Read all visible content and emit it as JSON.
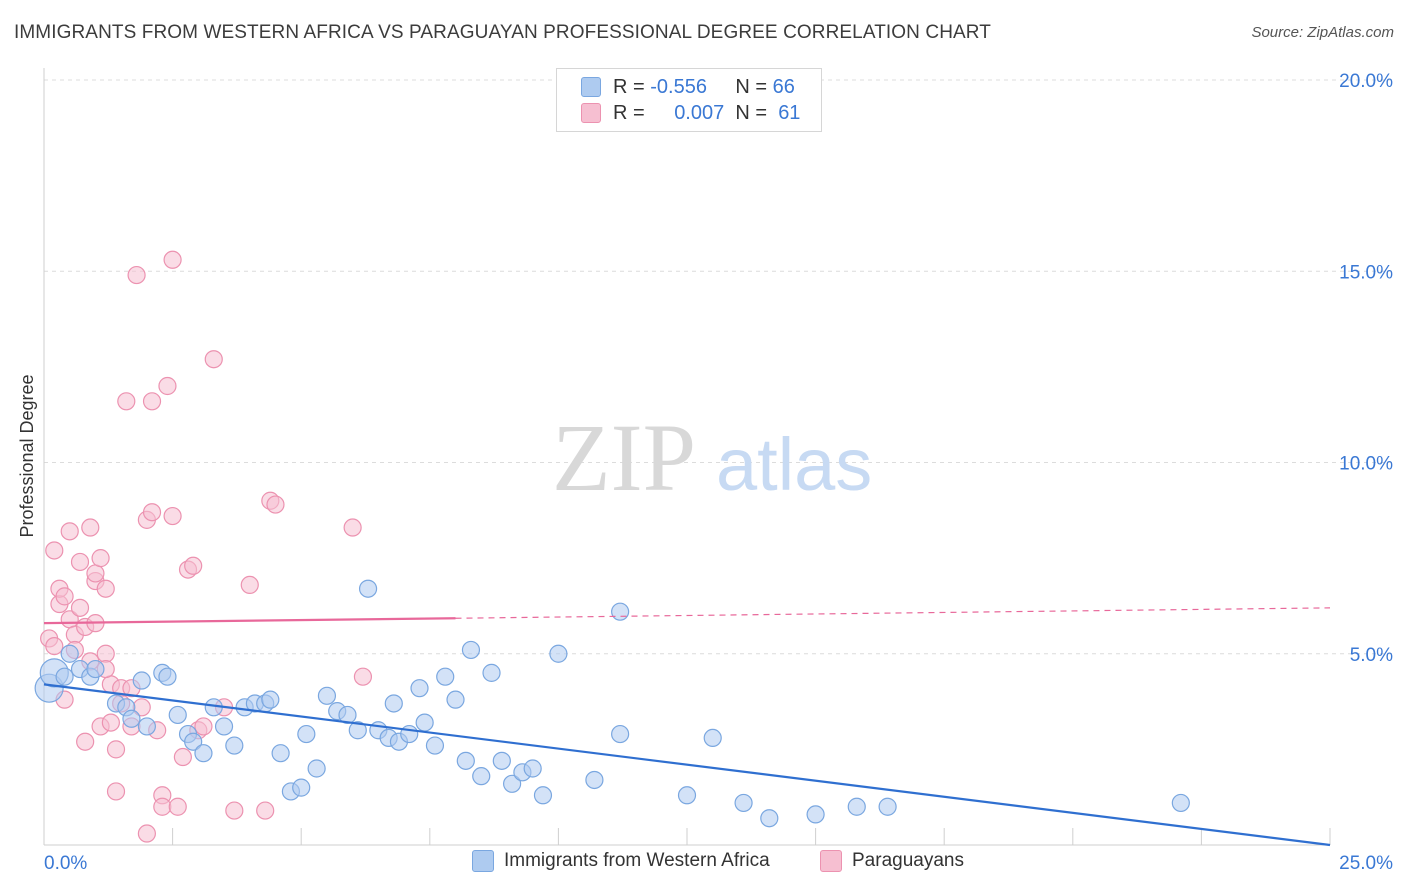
{
  "title": "IMMIGRANTS FROM WESTERN AFRICA VS PARAGUAYAN PROFESSIONAL DEGREE CORRELATION CHART",
  "source": "Source: ZipAtlas.com",
  "watermark": {
    "zip": "ZIP",
    "atlas": "atlas"
  },
  "colors": {
    "blue_fill": "#aecbf0",
    "blue_stroke": "#7aa7e0",
    "blue_line": "#2f6fd0",
    "pink_fill": "#f6bfd1",
    "pink_stroke": "#ec92b0",
    "pink_line": "#e8689a",
    "tick_label": "#3a78d4",
    "grid": "#dcdcdc"
  },
  "legend": {
    "rows": [
      {
        "r_label": "R =",
        "r_value": "-0.556",
        "n_label": "N =",
        "n_value": "66",
        "series": "blue"
      },
      {
        "r_label": "R =",
        "r_value": "0.007",
        "n_label": "N =",
        "n_value": "61",
        "series": "pink"
      }
    ]
  },
  "bottom_legend": [
    "Immigrants from Western Africa",
    "Paraguayans"
  ],
  "chart_data": {
    "type": "scatter",
    "title": "IMMIGRANTS FROM WESTERN AFRICA VS PARAGUAYAN PROFESSIONAL DEGREE CORRELATION CHART",
    "xlabel": "",
    "ylabel": "Professional Degree",
    "xlim": [
      0,
      25
    ],
    "ylim": [
      0,
      20
    ],
    "x_tick_labels": [
      "0.0%",
      "25.0%"
    ],
    "y_ticks": [
      5,
      10,
      15,
      20
    ],
    "y_tick_labels": [
      "5.0%",
      "10.0%",
      "15.0%",
      "20.0%"
    ],
    "grid": true,
    "legend_position": "top-center",
    "series": [
      {
        "name": "Immigrants from Western Africa",
        "color": "#aecbf0",
        "points": [
          [
            0.1,
            4.1
          ],
          [
            0.2,
            4.5
          ],
          [
            0.4,
            4.4
          ],
          [
            0.5,
            5.0
          ],
          [
            0.7,
            4.6
          ],
          [
            0.9,
            4.4
          ],
          [
            1.0,
            4.6
          ],
          [
            1.4,
            3.7
          ],
          [
            1.6,
            3.6
          ],
          [
            1.7,
            3.3
          ],
          [
            1.9,
            4.3
          ],
          [
            2.0,
            3.1
          ],
          [
            2.3,
            4.5
          ],
          [
            2.4,
            4.4
          ],
          [
            2.6,
            3.4
          ],
          [
            2.8,
            2.9
          ],
          [
            2.9,
            2.7
          ],
          [
            3.1,
            2.4
          ],
          [
            3.3,
            3.6
          ],
          [
            3.5,
            3.1
          ],
          [
            3.7,
            2.6
          ],
          [
            3.9,
            3.6
          ],
          [
            4.1,
            3.7
          ],
          [
            4.3,
            3.7
          ],
          [
            4.4,
            3.8
          ],
          [
            4.6,
            2.4
          ],
          [
            4.8,
            1.4
          ],
          [
            5.0,
            1.5
          ],
          [
            5.1,
            2.9
          ],
          [
            5.3,
            2.0
          ],
          [
            5.5,
            3.9
          ],
          [
            5.7,
            3.5
          ],
          [
            5.9,
            3.4
          ],
          [
            6.1,
            3.0
          ],
          [
            6.3,
            6.7
          ],
          [
            6.5,
            3.0
          ],
          [
            6.7,
            2.8
          ],
          [
            6.8,
            3.7
          ],
          [
            6.9,
            2.7
          ],
          [
            7.1,
            2.9
          ],
          [
            7.3,
            4.1
          ],
          [
            7.4,
            3.2
          ],
          [
            7.6,
            2.6
          ],
          [
            7.8,
            4.4
          ],
          [
            8.0,
            3.8
          ],
          [
            8.2,
            2.2
          ],
          [
            8.3,
            5.1
          ],
          [
            8.5,
            1.8
          ],
          [
            8.7,
            4.5
          ],
          [
            8.9,
            2.2
          ],
          [
            9.1,
            1.6
          ],
          [
            9.3,
            1.9
          ],
          [
            9.5,
            2.0
          ],
          [
            9.7,
            1.3
          ],
          [
            10.0,
            5.0
          ],
          [
            10.7,
            1.7
          ],
          [
            11.2,
            6.1
          ],
          [
            11.2,
            2.9
          ],
          [
            12.5,
            1.3
          ],
          [
            13.0,
            2.8
          ],
          [
            13.6,
            1.1
          ],
          [
            14.1,
            0.7
          ],
          [
            15.0,
            0.8
          ],
          [
            15.8,
            1.0
          ],
          [
            16.4,
            1.0
          ],
          [
            22.1,
            1.1
          ]
        ]
      },
      {
        "name": "Paraguayans",
        "color": "#f6bfd1",
        "points": [
          [
            0.1,
            5.4
          ],
          [
            0.2,
            7.7
          ],
          [
            0.3,
            6.3
          ],
          [
            0.3,
            6.7
          ],
          [
            0.4,
            6.5
          ],
          [
            0.5,
            8.2
          ],
          [
            0.5,
            5.9
          ],
          [
            0.6,
            5.5
          ],
          [
            0.7,
            6.2
          ],
          [
            0.7,
            7.4
          ],
          [
            0.8,
            2.7
          ],
          [
            0.8,
            5.7
          ],
          [
            0.9,
            8.3
          ],
          [
            1.0,
            6.9
          ],
          [
            1.0,
            7.1
          ],
          [
            1.0,
            5.8
          ],
          [
            1.1,
            3.1
          ],
          [
            1.1,
            7.5
          ],
          [
            1.2,
            6.7
          ],
          [
            1.2,
            5.0
          ],
          [
            1.3,
            3.2
          ],
          [
            1.3,
            4.2
          ],
          [
            1.4,
            2.5
          ],
          [
            1.4,
            1.4
          ],
          [
            1.5,
            4.1
          ],
          [
            1.6,
            11.6
          ],
          [
            1.7,
            4.1
          ],
          [
            1.7,
            3.1
          ],
          [
            1.8,
            14.9
          ],
          [
            1.9,
            3.6
          ],
          [
            2.0,
            8.5
          ],
          [
            2.1,
            8.7
          ],
          [
            2.1,
            11.6
          ],
          [
            2.2,
            3.0
          ],
          [
            2.3,
            1.3
          ],
          [
            2.3,
            1.0
          ],
          [
            2.4,
            12.0
          ],
          [
            2.5,
            15.3
          ],
          [
            2.5,
            8.6
          ],
          [
            2.6,
            1.0
          ],
          [
            2.7,
            2.3
          ],
          [
            2.8,
            7.2
          ],
          [
            2.9,
            7.3
          ],
          [
            3.0,
            3.0
          ],
          [
            3.1,
            3.1
          ],
          [
            3.3,
            12.7
          ],
          [
            3.5,
            3.6
          ],
          [
            3.7,
            0.9
          ],
          [
            4.0,
            6.8
          ],
          [
            4.3,
            0.9
          ],
          [
            4.4,
            9.0
          ],
          [
            4.5,
            8.9
          ],
          [
            6.0,
            8.3
          ],
          [
            6.2,
            4.4
          ],
          [
            0.2,
            5.2
          ],
          [
            0.4,
            3.8
          ],
          [
            0.6,
            5.1
          ],
          [
            2.0,
            0.3
          ],
          [
            1.5,
            3.7
          ],
          [
            0.9,
            4.8
          ],
          [
            1.2,
            4.6
          ]
        ]
      }
    ],
    "trendlines": [
      {
        "series": "Immigrants from Western Africa",
        "x0": 0,
        "y0": 4.2,
        "x1": 25,
        "y1": 0.0,
        "style": "solid"
      },
      {
        "series": "Paraguayans",
        "solid_x": [
          0,
          8
        ],
        "x0": 0,
        "y0": 5.8,
        "x1": 25,
        "y1": 6.2,
        "style": "solid-then-dashed"
      }
    ]
  }
}
